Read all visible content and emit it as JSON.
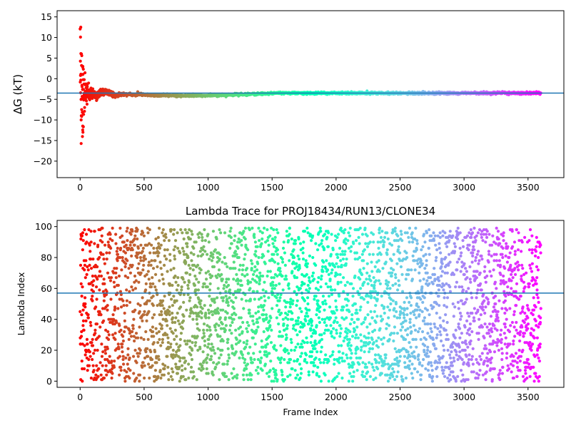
{
  "chart_data": [
    {
      "type": "scatter",
      "panel": "top",
      "title": "",
      "xlabel": "",
      "ylabel": "ΔG (kT)",
      "xlim": [
        -180,
        3780
      ],
      "ylim": [
        -24,
        16.5
      ],
      "xticks": [
        "0",
        "500",
        "1000",
        "1500",
        "2000",
        "2500",
        "3000",
        "3500"
      ],
      "xtick_values": [
        0,
        500,
        1000,
        1500,
        2000,
        2500,
        3000,
        3500
      ],
      "yticks": [
        "15",
        "10",
        "5",
        "0",
        "−5",
        "−10",
        "−15",
        "−20"
      ],
      "ytick_values": [
        15,
        10,
        5,
        0,
        -5,
        -10,
        -15,
        -20
      ],
      "hline": -3.5,
      "hline_color": "#1f77b4",
      "colormap": "rainbow_r",
      "x_range": [
        0,
        3600
      ],
      "series_description": "Running estimate of ΔG per frame; wide scatter (≈ -13 to 12.5) for the first ~100 frames converging to about -3.5 kT by ~1500 frames",
      "notable_points": [
        {
          "x": 5,
          "y": 12.5
        },
        {
          "x": 3,
          "y": 10.1
        },
        {
          "x": 6,
          "y": 6.1
        },
        {
          "x": 10,
          "y": 6.0
        },
        {
          "x": 20,
          "y": 2.8
        },
        {
          "x": 25,
          "y": 2.3
        },
        {
          "x": 15,
          "y": 1.0
        },
        {
          "x": 8,
          "y": -10.0
        },
        {
          "x": 20,
          "y": -11.5
        },
        {
          "x": 22,
          "y": -13.0
        },
        {
          "x": 12,
          "y": -7.5
        }
      ]
    },
    {
      "type": "scatter",
      "panel": "bottom",
      "title": "Lambda Trace for PROJ18434/RUN13/CLONE34",
      "xlabel": "Frame Index",
      "ylabel": "Lambda Index",
      "xlim": [
        -180,
        3780
      ],
      "ylim": [
        -4,
        104
      ],
      "xticks": [
        "0",
        "500",
        "1000",
        "1500",
        "2000",
        "2500",
        "3000",
        "3500"
      ],
      "xtick_values": [
        0,
        500,
        1000,
        1500,
        2000,
        2500,
        3000,
        3500
      ],
      "yticks": [
        "0",
        "20",
        "40",
        "60",
        "80",
        "100"
      ],
      "ytick_values": [
        0,
        20,
        40,
        60,
        80,
        100
      ],
      "hline": 57,
      "hline_color": "#1f77b4",
      "colormap": "rainbow_r",
      "x_range": [
        0,
        3600
      ],
      "y_range": [
        0,
        99
      ],
      "series_description": "Lambda index visited at each frame, roughly uniformly distributed between 0 and 99 across all frames"
    }
  ]
}
